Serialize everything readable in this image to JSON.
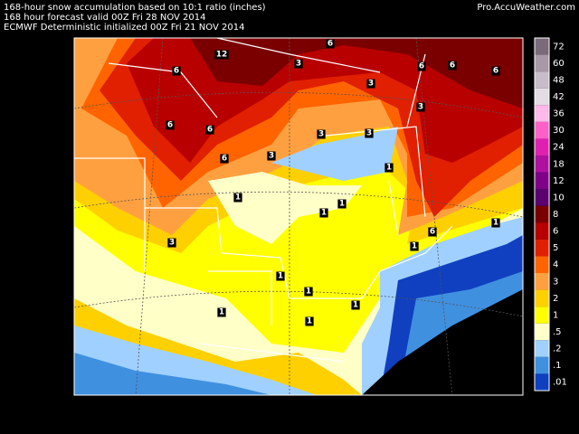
{
  "header": {
    "lines": [
      "168-hour snow accumulation based on 10:1 ratio (inches)",
      "168 hour forecast valid 00Z Fri 28 NOV 2014",
      "ECMWF Deterministic initialized 00Z Fri 21 NOV 2014"
    ],
    "source": "Pro.AccuWeather.com"
  },
  "legend": {
    "items": [
      {
        "label": "72",
        "color": "#7a6a7a"
      },
      {
        "label": "60",
        "color": "#a898a8"
      },
      {
        "label": "48",
        "color": "#c8bcc8"
      },
      {
        "label": "42",
        "color": "#e4dce4"
      },
      {
        "label": "36",
        "color": "#ffb8e8"
      },
      {
        "label": "30",
        "color": "#ff60c8"
      },
      {
        "label": "24",
        "color": "#e020b0"
      },
      {
        "label": "18",
        "color": "#b010a0"
      },
      {
        "label": "12",
        "color": "#800088"
      },
      {
        "label": "10",
        "color": "#5c0070"
      },
      {
        "label": "8",
        "color": "#7a0000"
      },
      {
        "label": "6",
        "color": "#b80000"
      },
      {
        "label": "5",
        "color": "#e02000"
      },
      {
        "label": "4",
        "color": "#ff6400"
      },
      {
        "label": "3",
        "color": "#ffa040"
      },
      {
        "label": "2",
        "color": "#ffd000"
      },
      {
        "label": "1",
        "color": "#ffff00"
      },
      {
        "label": ".5",
        "color": "#ffffc8"
      },
      {
        "label": ".2",
        "color": "#a0d0ff"
      },
      {
        "label": ".1",
        "color": "#4090e0"
      },
      {
        "label": ".01",
        "color": "#1040c0"
      }
    ]
  },
  "map": {
    "contour_labels": [
      12,
      6,
      6,
      3,
      3,
      6,
      6,
      6,
      3,
      6,
      6,
      6,
      3,
      3,
      3,
      1,
      1,
      1,
      1,
      3,
      1,
      1,
      1,
      1,
      1,
      1,
      6,
      1
    ]
  }
}
